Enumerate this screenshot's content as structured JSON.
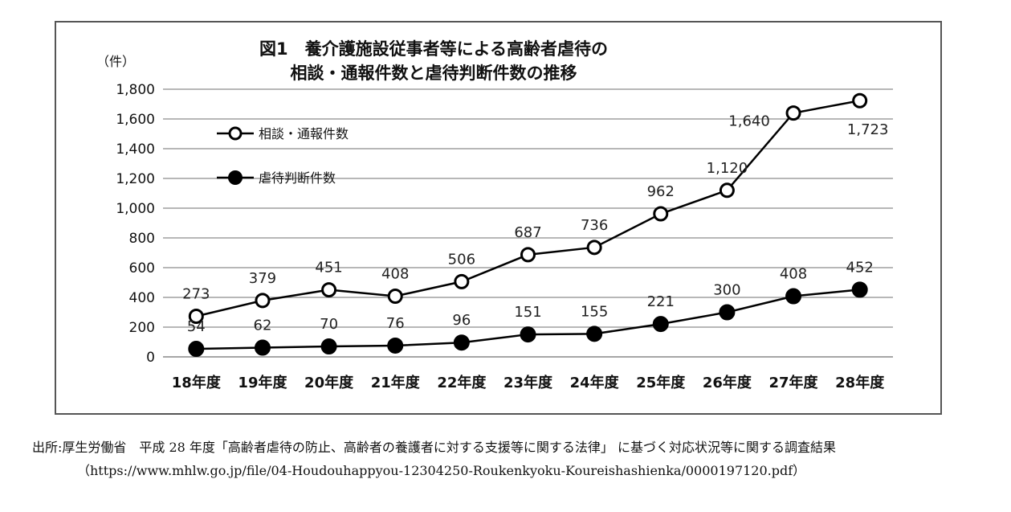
{
  "chart_data": {
    "type": "line",
    "title_lines": [
      "図1　養介護施設従事者等による高齢者虐待の",
      "相談・通報件数と虐待判断件数の推移"
    ],
    "unit_label": "（件）",
    "categories": [
      "18年度",
      "19年度",
      "20年度",
      "21年度",
      "22年度",
      "23年度",
      "24年度",
      "25年度",
      "26年度",
      "27年度",
      "28年度"
    ],
    "ylim": [
      0,
      1800
    ],
    "y_ticks": [
      0,
      200,
      400,
      600,
      800,
      1000,
      1200,
      1400,
      1600,
      1800
    ],
    "y_tick_labels": [
      "0",
      "200",
      "400",
      "600",
      "800",
      "1,000",
      "1,200",
      "1,400",
      "1,600",
      "1,800"
    ],
    "grid": true,
    "legend_position": "top-left",
    "series": [
      {
        "name": "相談・通報件数",
        "marker": "hollow-circle",
        "values": [
          273,
          379,
          451,
          408,
          506,
          687,
          736,
          962,
          1120,
          1640,
          1723
        ],
        "labels": [
          "273",
          "379",
          "451",
          "408",
          "506",
          "687",
          "736",
          "962",
          "1,120",
          "1,640",
          "1,723"
        ]
      },
      {
        "name": "虐待判断件数",
        "marker": "filled-circle",
        "values": [
          54,
          62,
          70,
          76,
          96,
          151,
          155,
          221,
          300,
          408,
          452
        ],
        "labels": [
          "54",
          "62",
          "70",
          "76",
          "96",
          "151",
          "155",
          "221",
          "300",
          "408",
          "452"
        ]
      }
    ]
  },
  "source": {
    "line1": "出所:厚生労働省　平成 28 年度「高齢者虐待の防止、高齢者の養護者に対する支援等に関する法律」 に基づく対応状況等に関する調査結果",
    "line2": "（https://www.mhlw.go.jp/file/04-Houdouhappyou-12304250-Roukenkyoku-Koureishashienka/0000197120.pdf）"
  },
  "colors": {
    "line": "#000000",
    "grid": "#8c8c8c",
    "frame": "#555555"
  }
}
